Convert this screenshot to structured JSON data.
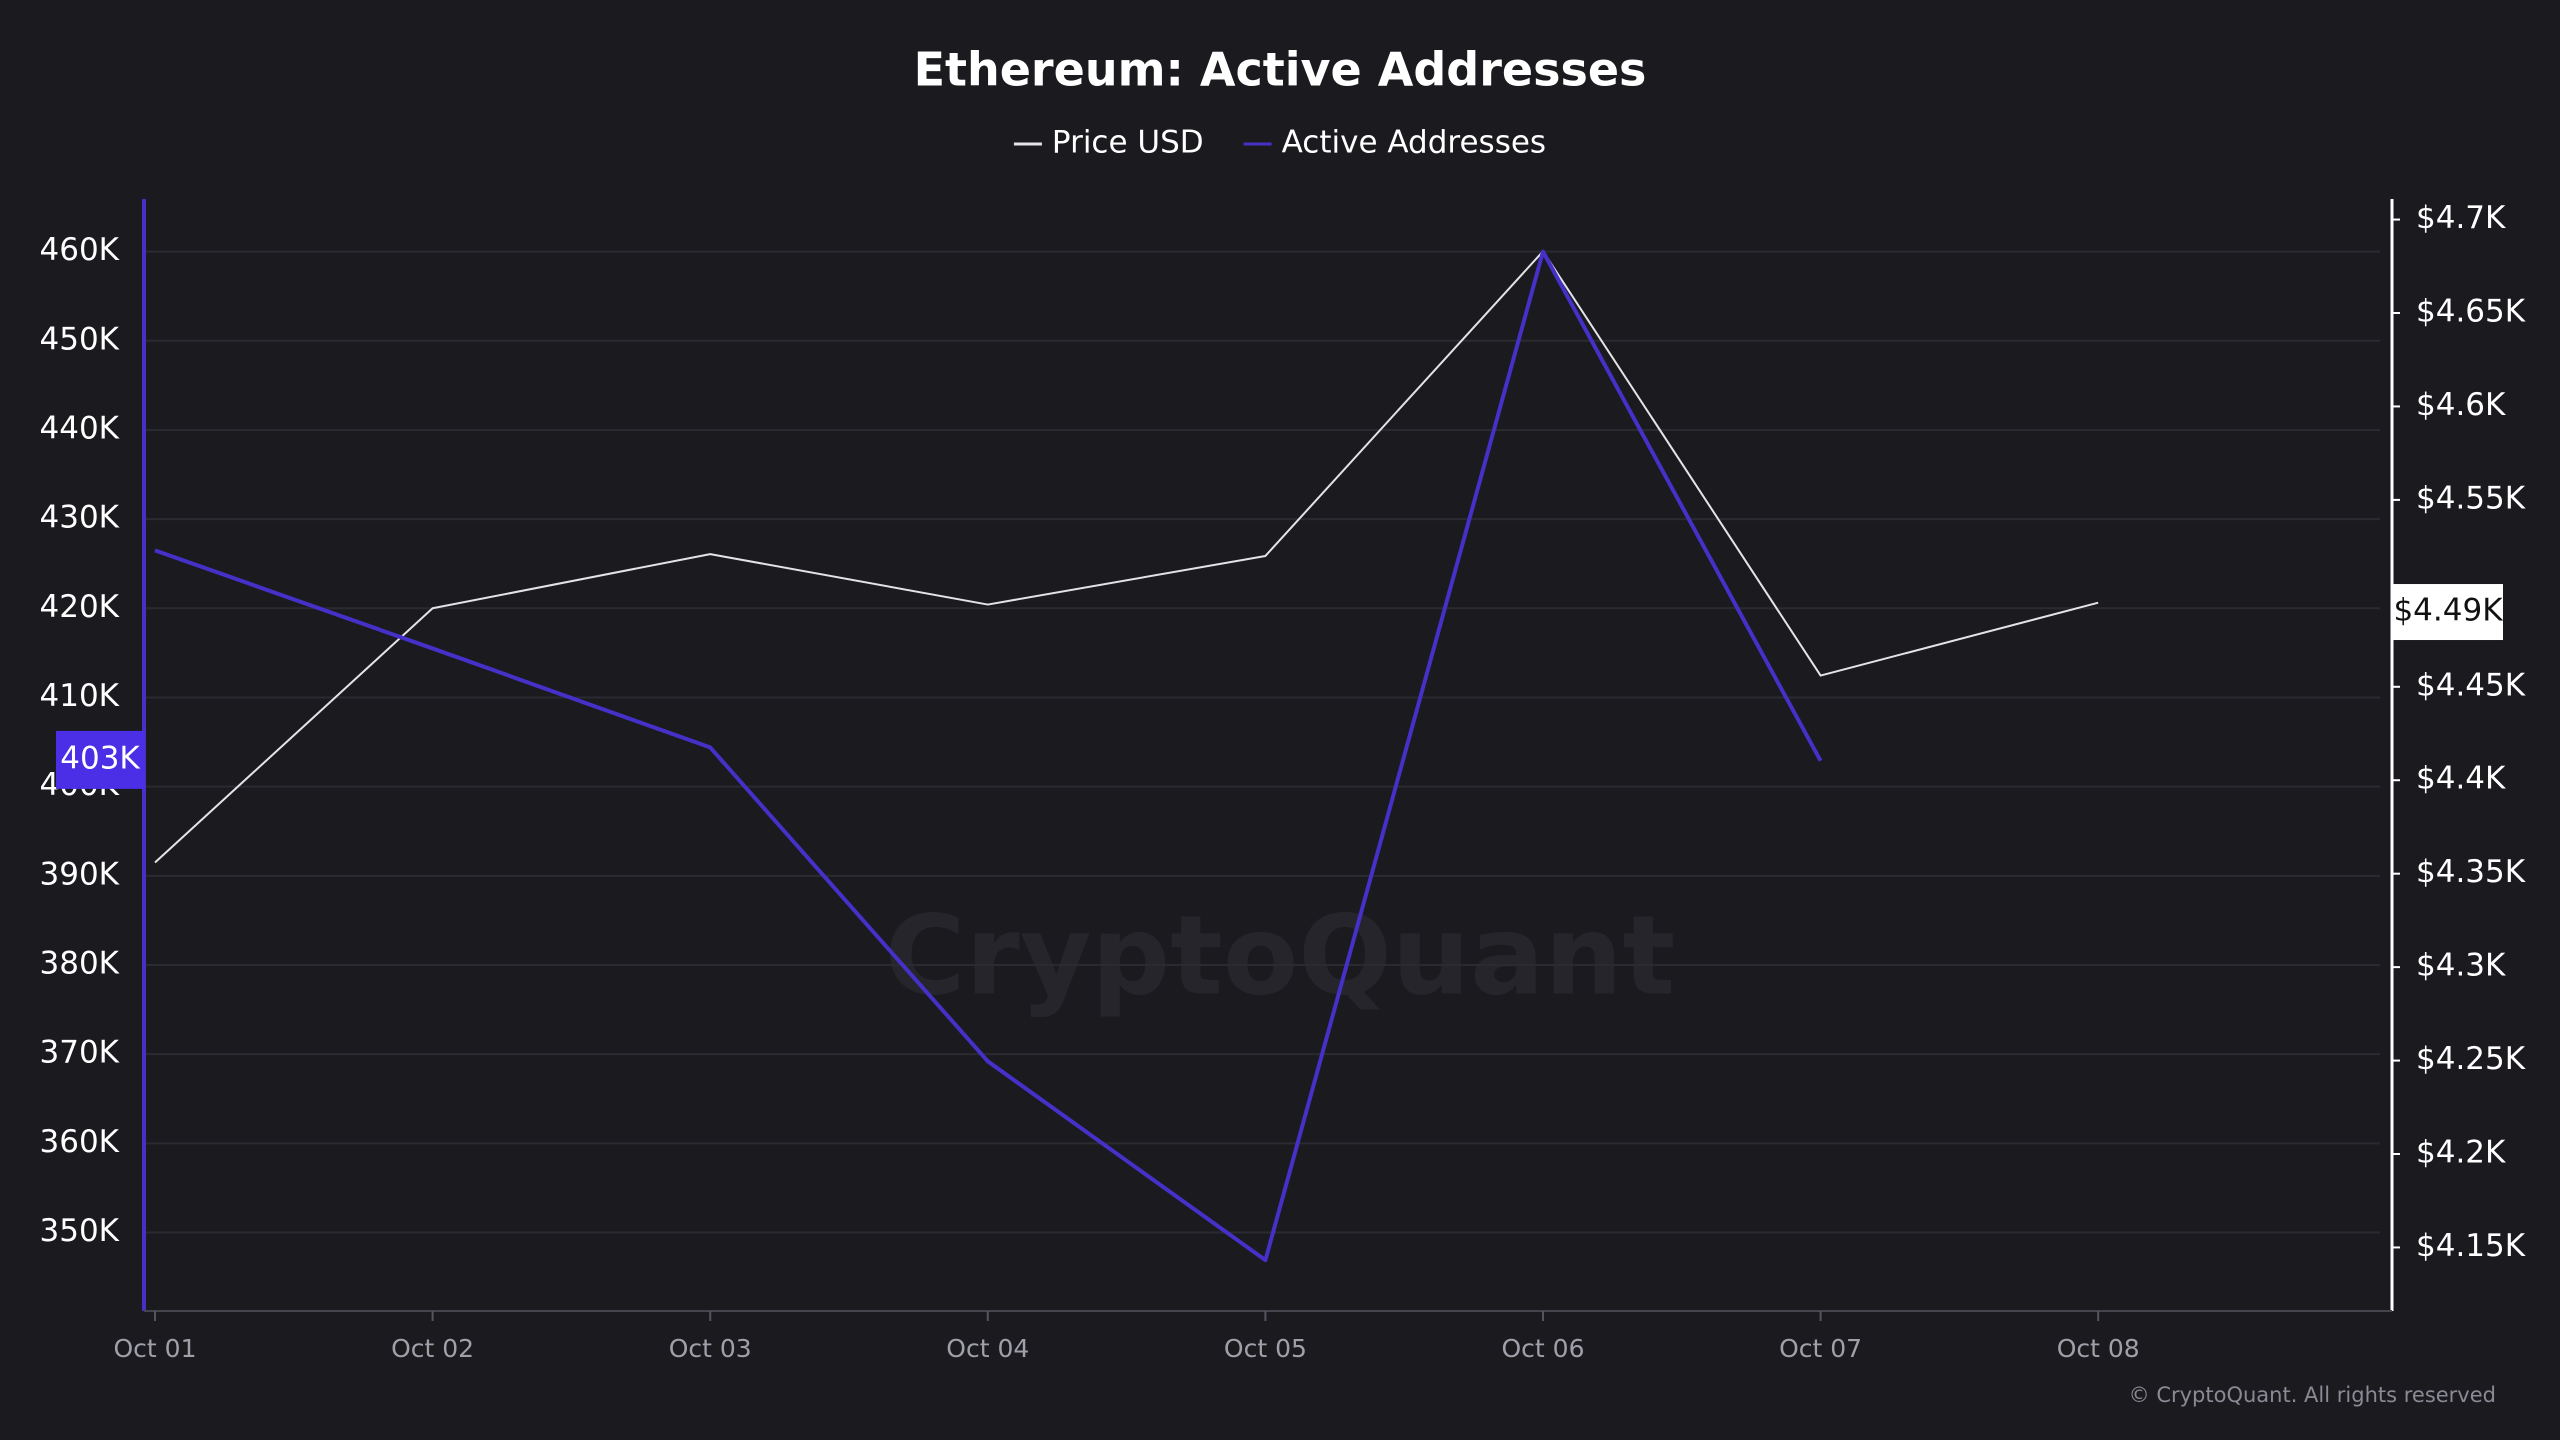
{
  "chart_data": {
    "type": "line",
    "title": "Ethereum: Active Addresses",
    "categories": [
      "Oct 01",
      "Oct 02",
      "Oct 03",
      "Oct 04",
      "Oct 05",
      "Oct 06",
      "Oct 07",
      "Oct 08"
    ],
    "series": [
      {
        "name": "Price USD",
        "color": "#e4e4e8",
        "axis": "y2",
        "values": [
          4356,
          4492,
          4521,
          4494,
          4520,
          4683,
          4456,
          4495
        ]
      },
      {
        "name": "Active Addresses",
        "color": "#4530c8",
        "values": [
          426500,
          415500,
          404400,
          369200,
          346900,
          460000,
          402900,
          null
        ]
      }
    ],
    "ylim": [
      341200,
      465900
    ],
    "yticks": [
      {
        "value": 350000,
        "label": "350K"
      },
      {
        "value": 360000,
        "label": "360K"
      },
      {
        "value": 370000,
        "label": "370K"
      },
      {
        "value": 380000,
        "label": "380K"
      },
      {
        "value": 390000,
        "label": "390K"
      },
      {
        "value": 400000,
        "label": "400K"
      },
      {
        "value": 410000,
        "label": "410K"
      },
      {
        "value": 420000,
        "label": "420K"
      },
      {
        "value": 430000,
        "label": "430K"
      },
      {
        "value": 440000,
        "label": "440K"
      },
      {
        "value": 450000,
        "label": "450K"
      },
      {
        "value": 460000,
        "label": "460K"
      }
    ],
    "y2lim": [
      4116,
      4711
    ],
    "y2ticks": [
      {
        "value": 4150,
        "label": "$4.15K"
      },
      {
        "value": 4200,
        "label": "$4.2K"
      },
      {
        "value": 4250,
        "label": "$4.25K"
      },
      {
        "value": 4300,
        "label": "$4.3K"
      },
      {
        "value": 4350,
        "label": "$4.35K"
      },
      {
        "value": 4400,
        "label": "$4.4K"
      },
      {
        "value": 4450,
        "label": "$4.45K"
      },
      {
        "value": 4550,
        "label": "$4.55K"
      },
      {
        "value": 4600,
        "label": "$4.6K"
      },
      {
        "value": 4650,
        "label": "$4.65K"
      },
      {
        "value": 4700,
        "label": "$4.7K"
      }
    ],
    "highlights": [
      {
        "axis": "y",
        "value": 403000,
        "label": "403K"
      },
      {
        "axis": "y2",
        "value": 4490,
        "label": "$4.49K"
      }
    ],
    "grid": true,
    "watermark": "CryptoQuant",
    "copyright": "© CryptoQuant. All rights reserved"
  }
}
